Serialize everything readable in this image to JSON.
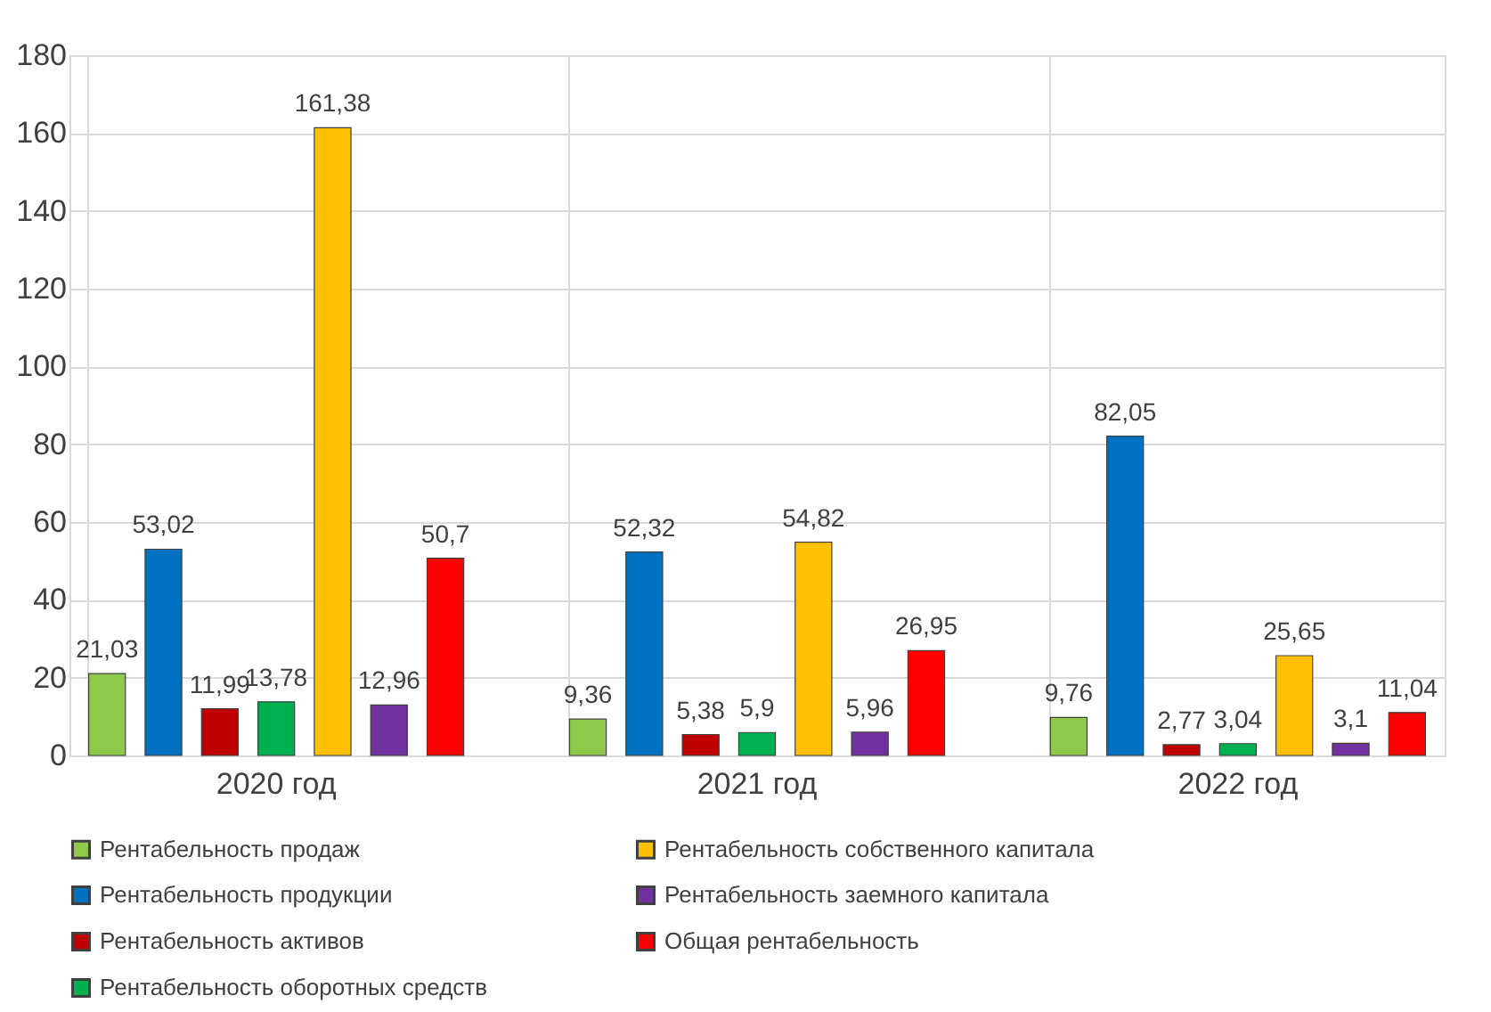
{
  "chart_data": {
    "type": "bar",
    "categories": [
      "2020 год",
      "2021 год",
      "2022 год"
    ],
    "series": [
      {
        "name": "Рентабельность продаж",
        "color": "#8fc94a",
        "values": [
          21.03,
          9.36,
          9.76
        ],
        "value_labels": [
          "21,03",
          "9,36",
          "9,76"
        ]
      },
      {
        "name": "Рентабельность продукции",
        "color": "#0070c0",
        "values": [
          53.02,
          52.32,
          82.05
        ],
        "value_labels": [
          "53,02",
          "52,32",
          "82,05"
        ]
      },
      {
        "name": "Рентабельность активов",
        "color": "#c00000",
        "values": [
          11.99,
          5.38,
          2.77
        ],
        "value_labels": [
          "11,99",
          "5,38",
          "2,77"
        ]
      },
      {
        "name": "Рентабельность оборотных средств",
        "color": "#00b050",
        "values": [
          13.78,
          5.9,
          3.04
        ],
        "value_labels": [
          "13,78",
          "5,9",
          "3,04"
        ]
      },
      {
        "name": "Рентабельность собственного капитала",
        "color": "#ffc000",
        "values": [
          161.38,
          54.82,
          25.65
        ],
        "value_labels": [
          "161,38",
          "54,82",
          "25,65"
        ]
      },
      {
        "name": "Рентабельность заемного капитала",
        "color": "#7030a0",
        "values": [
          12.96,
          5.96,
          3.1
        ],
        "value_labels": [
          "12,96",
          "5,96",
          "3,1"
        ]
      },
      {
        "name": "Общая рентабельность",
        "color": "#ff0000",
        "values": [
          50.7,
          26.95,
          11.04
        ],
        "value_labels": [
          "50,7",
          "26,95",
          "11,04"
        ]
      }
    ],
    "ylim": [
      0,
      180
    ],
    "yticks": [
      0,
      20,
      40,
      60,
      80,
      100,
      120,
      140,
      160,
      180
    ],
    "grid": true,
    "legend": "bottom"
  }
}
